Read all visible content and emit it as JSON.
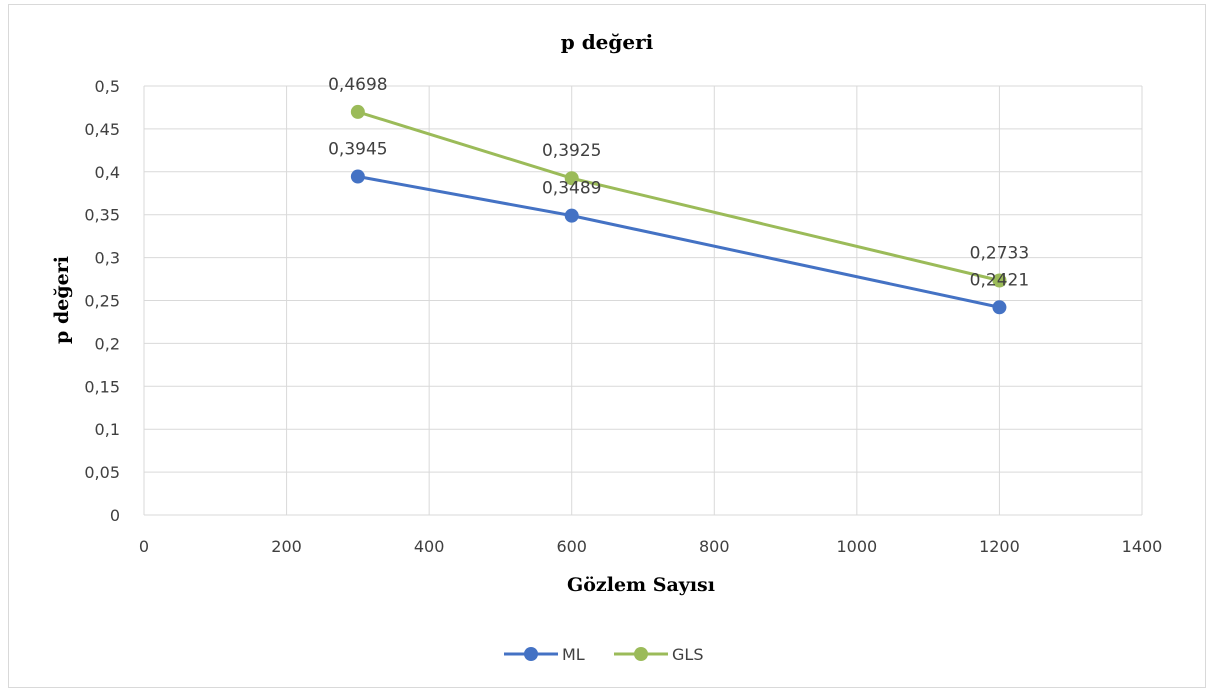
{
  "chart_data": {
    "type": "line",
    "title": "p değeri",
    "xlabel": "Gözlem Sayısı",
    "ylabel": "p değeri",
    "xlim": [
      0,
      1400
    ],
    "ylim": [
      0,
      0.5
    ],
    "x_ticks": [
      "0",
      "200",
      "400",
      "600",
      "800",
      "1000",
      "1200",
      "1400"
    ],
    "y_ticks": [
      "0",
      "0,05",
      "0,1",
      "0,15",
      "0,2",
      "0,25",
      "0,3",
      "0,35",
      "0,4",
      "0,45",
      "0,5"
    ],
    "grid": true,
    "legend_position": "bottom",
    "x": [
      300,
      600,
      1200
    ],
    "series": [
      {
        "name": "ML",
        "color": "#4472c4",
        "values": [
          0.3945,
          0.3489,
          0.2421
        ],
        "labels": [
          "0,3945",
          "0,3489",
          "0,2421"
        ]
      },
      {
        "name": "GLS",
        "color": "#9bbb59",
        "values": [
          0.4698,
          0.3925,
          0.2733
        ],
        "labels": [
          "0,4698",
          "0,3925",
          "0,2733"
        ]
      }
    ]
  }
}
